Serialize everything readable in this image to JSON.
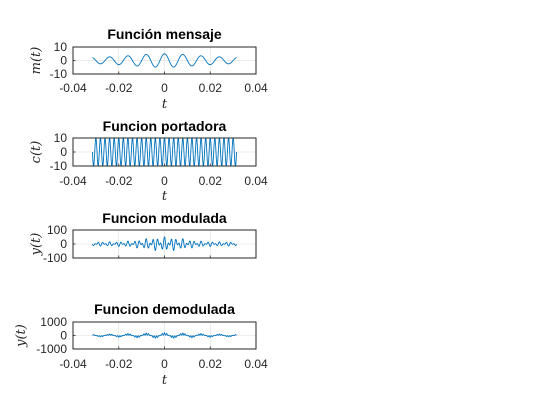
{
  "figure": {
    "background": "#ffffff",
    "line_color": "#0072bd",
    "axis_color": "#262626",
    "grid_color": "#dcdcdc"
  },
  "chart_data": [
    {
      "type": "line",
      "title": "Función mensaje",
      "xlabel": "t",
      "ylabel": "m(t)",
      "xlim": [
        -0.04,
        0.04
      ],
      "ylim": [
        -10,
        10
      ],
      "xticks": [
        "-0.04",
        "-0.02",
        "0",
        "0.02",
        "0.04"
      ],
      "yticks": [
        "10",
        "0",
        "-10"
      ],
      "yticks_values": [
        10,
        0,
        -10
      ],
      "grid": true,
      "x_range": [
        -0.0315,
        0.0315
      ],
      "signal": "message",
      "carrier_hz": 500,
      "amplitude": 5
    },
    {
      "type": "line",
      "title": "Funcion portadora",
      "xlabel": "t",
      "ylabel": "c(t)",
      "xlim": [
        -0.04,
        0.04
      ],
      "ylim": [
        -10,
        10
      ],
      "xticks": [
        "-0.04",
        "-0.02",
        "0",
        "0.02",
        "0.04"
      ],
      "yticks": [
        "10",
        "0",
        "-10"
      ],
      "yticks_values": [
        10,
        0,
        -10
      ],
      "grid": true,
      "x_range": [
        -0.0315,
        0.0315
      ],
      "signal": "carrier",
      "carrier_hz": 500,
      "amplitude": 10
    },
    {
      "type": "line",
      "title": "Funcion modulada",
      "xlabel": "",
      "ylabel": "y(t)",
      "xlim": [
        -0.04,
        0.04
      ],
      "ylim": [
        -100,
        100
      ],
      "xticks": [],
      "yticks": [
        "100",
        "0",
        "-100"
      ],
      "yticks_values": [
        100,
        0,
        -100
      ],
      "grid": true,
      "x_range": [
        -0.0315,
        0.0315
      ],
      "signal": "modulated",
      "carrier_hz": 500,
      "amplitude": 50
    },
    {
      "type": "line",
      "title": "Funcion demodulada",
      "xlabel": "t",
      "ylabel": "y(t)",
      "xlim": [
        -0.04,
        0.04
      ],
      "ylim": [
        -1000,
        1000
      ],
      "xticks": [
        "-0.04",
        "-0.02",
        "0",
        "0.02",
        "0.04"
      ],
      "yticks": [
        "1000",
        "0",
        "-1000"
      ],
      "yticks_values": [
        1000,
        0,
        -1000
      ],
      "grid": true,
      "x_range": [
        -0.0315,
        0.0315
      ],
      "signal": "demodulated",
      "carrier_hz": 500,
      "amplitude": 250
    }
  ]
}
